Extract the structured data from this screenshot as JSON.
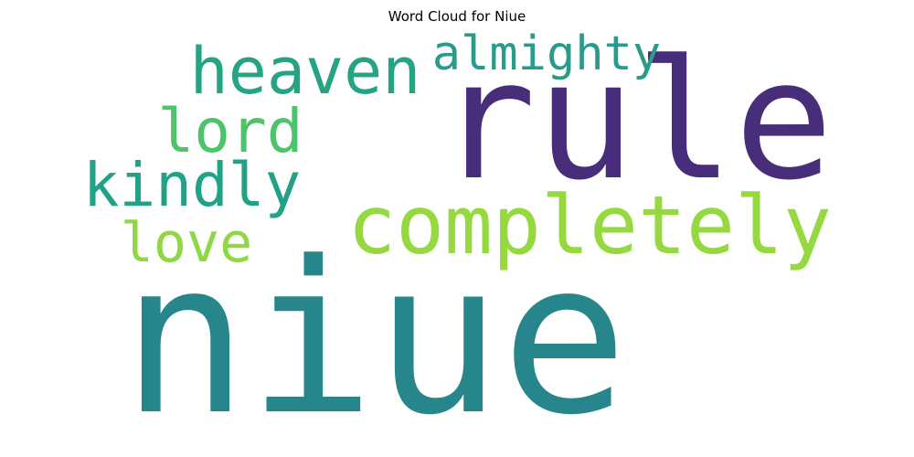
{
  "chart_data": {
    "type": "wordcloud",
    "title": "Word Cloud for Niue",
    "words": [
      {
        "text": "niue",
        "weight": 1.0,
        "color": "#26868c"
      },
      {
        "text": "rule",
        "weight": 0.78,
        "color": "#482d7b"
      },
      {
        "text": "completely",
        "weight": 0.42,
        "color": "#95d840"
      },
      {
        "text": "heaven",
        "weight": 0.33,
        "color": "#25a484"
      },
      {
        "text": "almighty",
        "weight": 0.24,
        "color": "#2a9b8a"
      },
      {
        "text": "lord",
        "weight": 0.31,
        "color": "#4dc36a"
      },
      {
        "text": "kindly",
        "weight": 0.31,
        "color": "#21a188"
      },
      {
        "text": "love",
        "weight": 0.28,
        "color": "#8fd744"
      }
    ]
  }
}
